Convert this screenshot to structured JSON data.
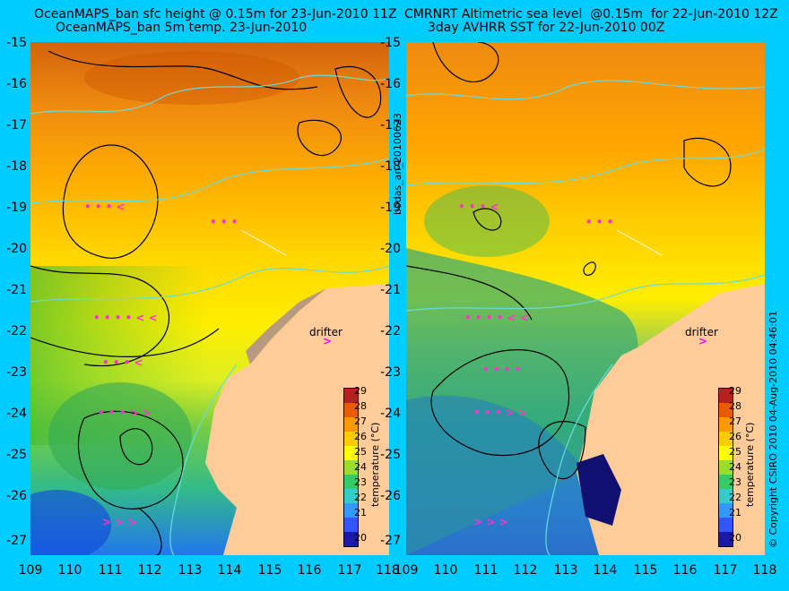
{
  "titles": {
    "left_line1": "OceanMAPS_ban sfc height @ 0.15m for 23-Jun-2010 11Z",
    "left_line2": "OceanMAPS_ban 5m temp. 23-Jun-2010",
    "right_line1": "CMRNRT Altimetric sea level  @0.15m  for 22-Jun-2010 12Z",
    "right_line2": "3day AVHRR SST for 22-Jun-2010 00Z"
  },
  "y_axis": [
    "-15",
    "-16",
    "-17",
    "-18",
    "-19",
    "-20",
    "-21",
    "-22",
    "-23",
    "-24",
    "-25",
    "-26",
    "-27"
  ],
  "x_axis": [
    "109",
    "110",
    "111",
    "112",
    "113",
    "114",
    "115",
    "116",
    "117",
    "118"
  ],
  "colorbar": {
    "ticks": [
      "29",
      "28",
      "27",
      "26",
      "25",
      "24",
      "23",
      "22",
      "21",
      "20"
    ],
    "label": "temperature (°C)",
    "colors": [
      "#b22222",
      "#e65c00",
      "#ff9900",
      "#ffcc00",
      "#ffff00",
      "#99dd33",
      "#33cc66",
      "#33cccc",
      "#3399ff",
      "#3355ff",
      "#1a1aaa"
    ]
  },
  "middle_label": "bodas_an_20100623",
  "copyright": "© Copyright CSIRO 2010   04-Aug-2010 04:46:01",
  "drifter_label": "drifter",
  "drifter_arrow": ">",
  "colors": {
    "background": "#00ccff",
    "land": "#ffcc99",
    "velocity_arrows": "#ff33cc",
    "contours": "#000000",
    "bathymetry": "#66dddd"
  }
}
